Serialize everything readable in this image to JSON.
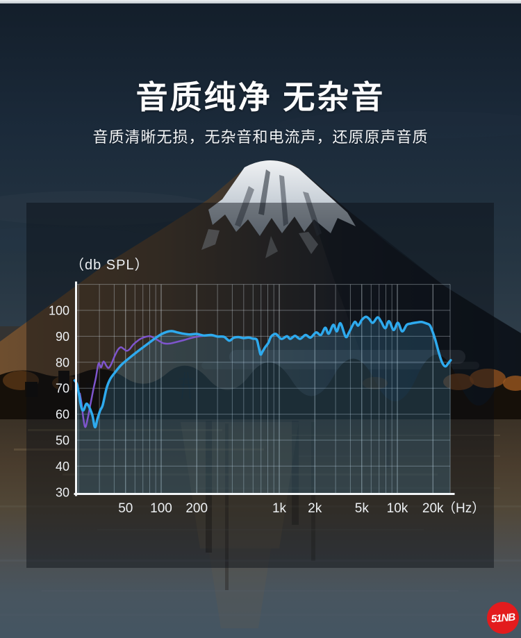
{
  "header": {
    "title": "音质纯净 无杂音",
    "subtitle": "音质清晰无损，无杂音和电流声，还原原声音质"
  },
  "watermark": {
    "text": "51NB",
    "color": "#e31b1d"
  },
  "colors": {
    "accent_blue": "#2eaaee",
    "accent_purple": "#7e55cd",
    "axis_white": "#f3f6f8",
    "panel_overlay": "rgba(9,13,19,0.45)"
  },
  "chart_data": {
    "type": "line",
    "x_scale": "log",
    "y_axis_title": "（db SPL）",
    "x_unit_label": "（Hz）",
    "xlim": [
      18.5,
      28300
    ],
    "ylim": [
      30,
      110
    ],
    "grid": "on",
    "legend": "none",
    "x_ticks": [
      {
        "f": 50,
        "label": "50"
      },
      {
        "f": 100,
        "label": "100"
      },
      {
        "f": 200,
        "label": "200"
      },
      {
        "f": 1000,
        "label": "1k"
      },
      {
        "f": 2000,
        "label": "2k"
      },
      {
        "f": 5000,
        "label": "5k"
      },
      {
        "f": 10000,
        "label": "10k"
      },
      {
        "f": 20000,
        "label": "20k"
      }
    ],
    "y_ticks": [
      100,
      90,
      80,
      70,
      60,
      50,
      40,
      30
    ],
    "grid_freqs": [
      20,
      30,
      40,
      50,
      60,
      70,
      80,
      90,
      100,
      200,
      300,
      400,
      500,
      600,
      700,
      800,
      900,
      1000,
      2000,
      3000,
      4000,
      5000,
      6000,
      7000,
      8000,
      9000,
      10000,
      20000
    ],
    "grid_db": [
      110,
      100,
      90,
      80,
      70,
      60,
      50,
      40
    ],
    "series": [
      {
        "name": "secondary-response-curve",
        "color": "#7e55cd",
        "width": 2.5,
        "points": [
          [
            20.5,
            68
          ],
          [
            21.2,
            64
          ],
          [
            22,
            58
          ],
          [
            22.8,
            55
          ],
          [
            23.8,
            58
          ],
          [
            25,
            63
          ],
          [
            26.5,
            69
          ],
          [
            28,
            74
          ],
          [
            29.5,
            79.5
          ],
          [
            31,
            78
          ],
          [
            32.5,
            80.3
          ],
          [
            34.5,
            78.5
          ],
          [
            36,
            77.8
          ],
          [
            38,
            79.5
          ],
          [
            40.5,
            82.5
          ],
          [
            43,
            84.8
          ],
          [
            45.5,
            85.8
          ],
          [
            48,
            85.2
          ],
          [
            51,
            84.4
          ],
          [
            54,
            85
          ],
          [
            58,
            86.8
          ],
          [
            63,
            88.2
          ],
          [
            68,
            89.2
          ],
          [
            74,
            89.8
          ],
          [
            81,
            90
          ],
          [
            88,
            89.2
          ],
          [
            96,
            88.2
          ],
          [
            105,
            87.3
          ],
          [
            118,
            87.2
          ],
          [
            135,
            87.8
          ],
          [
            155,
            88.5
          ],
          [
            178,
            89.3
          ],
          [
            205,
            89.9
          ],
          [
            230,
            90.2
          ]
        ]
      },
      {
        "name": "main-frequency-response-curve",
        "color": "#2eaaee",
        "width": 3.5,
        "area_fill": "rgba(80,170,220,0.2)",
        "points": [
          [
            18.5,
            73
          ],
          [
            19.5,
            71
          ],
          [
            21,
            63
          ],
          [
            22,
            61.5
          ],
          [
            23.5,
            64
          ],
          [
            26,
            60
          ],
          [
            27.5,
            55
          ],
          [
            29,
            58.5
          ],
          [
            30.5,
            61.5
          ],
          [
            32,
            63.5
          ],
          [
            34.5,
            70
          ],
          [
            37,
            73.5
          ],
          [
            40.5,
            76
          ],
          [
            46,
            79
          ],
          [
            55,
            82
          ],
          [
            65,
            84.6
          ],
          [
            78,
            87.3
          ],
          [
            94,
            90
          ],
          [
            107,
            91.4
          ],
          [
            122,
            92
          ],
          [
            137,
            91.5
          ],
          [
            155,
            91
          ],
          [
            175,
            90.7
          ],
          [
            200,
            90.9
          ],
          [
            230,
            90.3
          ],
          [
            265,
            90.5
          ],
          [
            300,
            89.9
          ],
          [
            340,
            89.8
          ],
          [
            377,
            88.3
          ],
          [
            410,
            89.4
          ],
          [
            450,
            89.7
          ],
          [
            500,
            89.3
          ],
          [
            550,
            89.5
          ],
          [
            600,
            89.1
          ],
          [
            645,
            88.7
          ],
          [
            672,
            85.5
          ],
          [
            695,
            83
          ],
          [
            720,
            84
          ],
          [
            760,
            85.8
          ],
          [
            810,
            87.5
          ],
          [
            851,
            89.8
          ],
          [
            935,
            90.9
          ],
          [
            1040,
            89
          ],
          [
            1160,
            90
          ],
          [
            1240,
            89
          ],
          [
            1360,
            90.2
          ],
          [
            1500,
            89
          ],
          [
            1670,
            90.5
          ],
          [
            1840,
            89.5
          ],
          [
            2050,
            91.5
          ],
          [
            2250,
            90.5
          ],
          [
            2450,
            93.3
          ],
          [
            2620,
            91
          ],
          [
            2870,
            94.4
          ],
          [
            3070,
            91.9
          ],
          [
            3300,
            95
          ],
          [
            3650,
            89.8
          ],
          [
            3900,
            91.5
          ],
          [
            4350,
            95.5
          ],
          [
            4650,
            94.1
          ],
          [
            5000,
            96.3
          ],
          [
            5400,
            97.5
          ],
          [
            5750,
            96.8
          ],
          [
            6200,
            95.2
          ],
          [
            6800,
            97.3
          ],
          [
            7300,
            95.6
          ],
          [
            7900,
            93.1
          ],
          [
            8500,
            95.8
          ],
          [
            9300,
            92.4
          ],
          [
            10100,
            95.2
          ],
          [
            11000,
            91.9
          ],
          [
            12000,
            94.4
          ],
          [
            13000,
            94.9
          ],
          [
            14500,
            95.3
          ],
          [
            16000,
            95.5
          ],
          [
            17500,
            95
          ],
          [
            18800,
            94.3
          ],
          [
            19800,
            92
          ],
          [
            21000,
            88.5
          ],
          [
            22500,
            83.5
          ],
          [
            24000,
            79.8
          ],
          [
            25500,
            78.4
          ],
          [
            27000,
            79.6
          ],
          [
            28300,
            80.8
          ]
        ]
      }
    ]
  }
}
